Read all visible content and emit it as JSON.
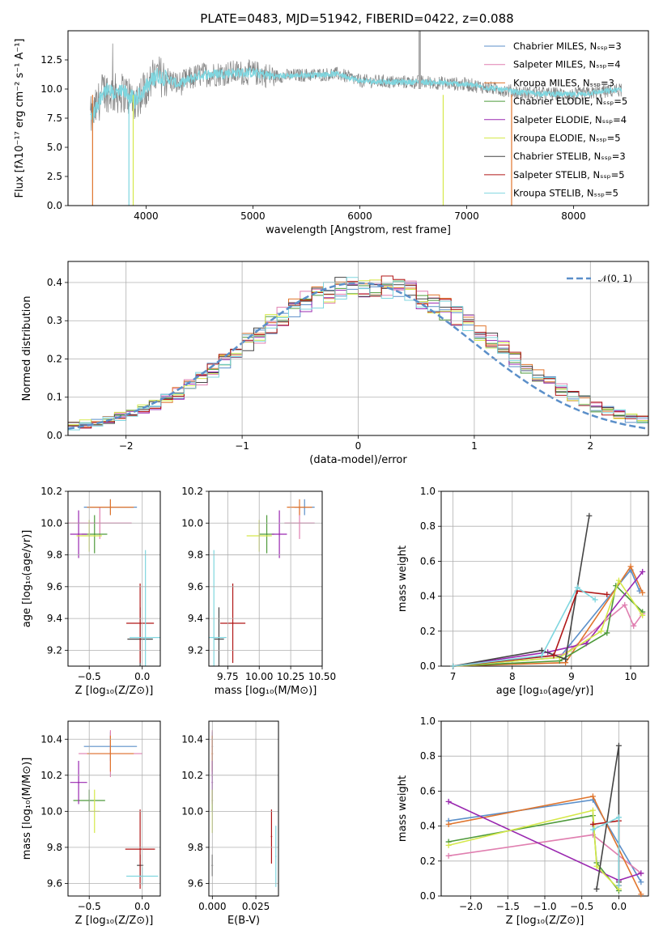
{
  "chart_data": [
    {
      "id": "spectrum",
      "type": "line",
      "title": "PLATE=0483, MJD=51942, FIBERID=0422, z=0.088",
      "xlabel": "wavelength [Angstrom, rest frame]",
      "ylabel": "Flux [fλ10⁻¹⁷ erg cm⁻² s⁻¹ A⁻¹]",
      "xlim": [
        3270,
        8700
      ],
      "ylim": [
        0,
        15
      ],
      "xticks": [
        4000,
        5000,
        6000,
        7000,
        8000
      ],
      "yticks": [
        0.0,
        2.5,
        5.0,
        7.5,
        10.0,
        12.5
      ],
      "xtick_labels": [
        "4000",
        "5000",
        "6000",
        "7000",
        "8000"
      ],
      "ytick_labels": [
        "0.0",
        "2.5",
        "5.0",
        "7.5",
        "10.0",
        "12.5"
      ],
      "legend_position": "top-right",
      "legend": [
        {
          "label": "Chabrier MILES, Nₛₛₚ=3",
          "color": "#5b8fc9"
        },
        {
          "label": "Salpeter MILES, Nₛₛₚ=4",
          "color": "#e07fb0"
        },
        {
          "label": "Kroupa MILES, Nₛₛₚ=3",
          "color": "#e0752d"
        },
        {
          "label": "Chabrier ELODIE, Nₛₛₚ=5",
          "color": "#4e9a3b"
        },
        {
          "label": "Salpeter ELODIE, Nₛₛₚ=4",
          "color": "#9a28b0"
        },
        {
          "label": "Kroupa ELODIE, Nₛₛₚ=5",
          "color": "#d5e84a"
        },
        {
          "label": "Chabrier STELIB, Nₛₛₚ=3",
          "color": "#444444"
        },
        {
          "label": "Salpeter STELIB, Nₛₛₚ=5",
          "color": "#b01717"
        },
        {
          "label": "Kroupa STELIB, Nₛₛₚ=5",
          "color": "#7fd6df"
        }
      ],
      "data_color": "#808080",
      "model_color": "#7fd6df",
      "continuum": {
        "x": [
          3500,
          3600,
          3700,
          3800,
          3900,
          4000,
          4100,
          4200,
          4300,
          4500,
          4800,
          5000,
          5200,
          5500,
          5800,
          6000,
          6300,
          6600,
          7000,
          7500,
          8000,
          8500
        ],
        "y": [
          7.6,
          9.9,
          9.6,
          9.7,
          9.0,
          10.2,
          11.2,
          10.9,
          10.4,
          11.2,
          11.4,
          11.4,
          11.1,
          11.2,
          11.3,
          10.7,
          10.6,
          10.6,
          10.4,
          9.7,
          9.5,
          10.0
        ]
      }
    },
    {
      "id": "residuals",
      "type": "histogram",
      "xlabel": "(data-model)/error",
      "ylabel": "Normed distribution",
      "xlim": [
        -2.5,
        2.5
      ],
      "ylim": [
        0,
        0.455
      ],
      "xticks": [
        -2,
        -1,
        0,
        1,
        2
      ],
      "yticks": [
        0.0,
        0.1,
        0.2,
        0.3,
        0.4
      ],
      "xtick_labels": [
        "−2",
        "−1",
        "0",
        "1",
        "2"
      ],
      "ytick_labels": [
        "0.0",
        "0.1",
        "0.2",
        "0.3",
        "0.4"
      ],
      "legend_label": "𝒩(0, 1)",
      "legend_position": "top-right",
      "gaussian_color": "#5b8fc9",
      "bin_width": 0.1,
      "bin_start": -2.5,
      "hist_values": [
        0.025,
        0.03,
        0.035,
        0.04,
        0.05,
        0.06,
        0.07,
        0.08,
        0.095,
        0.11,
        0.13,
        0.15,
        0.17,
        0.195,
        0.22,
        0.245,
        0.265,
        0.29,
        0.31,
        0.33,
        0.35,
        0.36,
        0.375,
        0.385,
        0.39,
        0.395,
        0.395,
        0.39,
        0.385,
        0.375,
        0.36,
        0.345,
        0.33,
        0.31,
        0.29,
        0.27,
        0.245,
        0.225,
        0.2,
        0.18,
        0.16,
        0.14,
        0.12,
        0.105,
        0.09,
        0.075,
        0.065,
        0.055,
        0.045,
        0.04
      ]
    },
    {
      "id": "age-vs-Z",
      "type": "errorbar",
      "xlabel": "Z [log₁₀(Z/Z⊙)]",
      "ylabel": "age  [log₁₀(age/yr)]",
      "xlim": [
        -0.7,
        0.17
      ],
      "ylim": [
        9.1,
        10.2
      ],
      "xticks": [
        -0.5,
        0.0
      ],
      "yticks": [
        9.2,
        9.4,
        9.6,
        9.8,
        10.0,
        10.2
      ],
      "xtick_labels": [
        "−0.5",
        "0.0"
      ],
      "ytick_labels": [
        "9.2",
        "9.4",
        "9.6",
        "9.8",
        "10.0",
        "10.2"
      ],
      "points": [
        {
          "x": -0.3,
          "y": 10.1,
          "xerr": 0.25,
          "yerr": 0.05,
          "color": "#5b8fc9"
        },
        {
          "x": -0.4,
          "y": 10.0,
          "xerr": 0.3,
          "yerr": 0.1,
          "color": "#e07fb0"
        },
        {
          "x": -0.3,
          "y": 10.1,
          "xerr": 0.22,
          "yerr": 0.05,
          "color": "#e0752d"
        },
        {
          "x": -0.45,
          "y": 9.93,
          "xerr": 0.12,
          "yerr": 0.12,
          "color": "#4e9a3b"
        },
        {
          "x": -0.6,
          "y": 9.93,
          "xerr": 0.08,
          "yerr": 0.15,
          "color": "#9a28b0"
        },
        {
          "x": -0.5,
          "y": 9.92,
          "xerr": 0.12,
          "yerr": 0.1,
          "color": "#d5e84a"
        },
        {
          "x": -0.02,
          "y": 9.27,
          "xerr": 0.12,
          "yerr": 0.2,
          "color": "#444444"
        },
        {
          "x": -0.02,
          "y": 9.37,
          "xerr": 0.13,
          "yerr": 0.25,
          "color": "#b01717"
        },
        {
          "x": 0.03,
          "y": 9.28,
          "xerr": 0.15,
          "yerr": 0.55,
          "color": "#7fd6df"
        }
      ]
    },
    {
      "id": "age-vs-mass",
      "type": "errorbar",
      "xlabel": "mass [log₁₀(M/M⊙)]",
      "xlim": [
        9.6,
        10.5
      ],
      "ylim": [
        9.1,
        10.2
      ],
      "xticks": [
        9.75,
        10.0,
        10.25,
        10.5
      ],
      "yticks": [
        9.2,
        9.4,
        9.6,
        9.8,
        10.0,
        10.2
      ],
      "xtick_labels": [
        "9.75",
        "10.00",
        "10.25",
        "10.50"
      ],
      "ytick_labels": [
        "9.2",
        "9.4",
        "9.6",
        "9.8",
        "10.0",
        "10.2"
      ],
      "points": [
        {
          "x": 10.36,
          "y": 10.1,
          "xerr": 0.08,
          "yerr": 0.05,
          "color": "#5b8fc9"
        },
        {
          "x": 10.32,
          "y": 10.0,
          "xerr": 0.12,
          "yerr": 0.1,
          "color": "#e07fb0"
        },
        {
          "x": 10.32,
          "y": 10.1,
          "xerr": 0.1,
          "yerr": 0.05,
          "color": "#e0752d"
        },
        {
          "x": 10.06,
          "y": 9.93,
          "xerr": 0.06,
          "yerr": 0.12,
          "color": "#4e9a3b"
        },
        {
          "x": 10.16,
          "y": 9.93,
          "xerr": 0.06,
          "yerr": 0.15,
          "color": "#9a28b0"
        },
        {
          "x": 10.0,
          "y": 9.92,
          "xerr": 0.1,
          "yerr": 0.1,
          "color": "#d5e84a"
        },
        {
          "x": 9.68,
          "y": 9.27,
          "xerr": 0.04,
          "yerr": 0.2,
          "color": "#444444"
        },
        {
          "x": 9.79,
          "y": 9.37,
          "xerr": 0.1,
          "yerr": 0.25,
          "color": "#b01717"
        },
        {
          "x": 9.64,
          "y": 9.28,
          "xerr": 0.1,
          "yerr": 0.55,
          "color": "#7fd6df"
        }
      ]
    },
    {
      "id": "massweight-vs-age",
      "type": "line",
      "xlabel": "age  [log₁₀(age/yr)]",
      "ylabel": "mass weight",
      "xlim": [
        6.8,
        10.3
      ],
      "ylim": [
        0,
        1.0
      ],
      "xticks": [
        7,
        8,
        9,
        10
      ],
      "yticks": [
        0.0,
        0.2,
        0.4,
        0.6,
        0.8,
        1.0
      ],
      "xtick_labels": [
        "7",
        "8",
        "9",
        "10"
      ],
      "ytick_labels": [
        "0.0",
        "0.2",
        "0.4",
        "0.6",
        "0.8",
        "1.0"
      ],
      "series": [
        {
          "color": "#5b8fc9",
          "x": [
            7.0,
            8.8,
            10.0,
            10.15
          ],
          "y": [
            0.0,
            0.05,
            0.55,
            0.43
          ]
        },
        {
          "color": "#e07fb0",
          "x": [
            7.0,
            8.9,
            9.9,
            10.05,
            10.2
          ],
          "y": [
            0.0,
            0.07,
            0.35,
            0.23,
            0.3
          ]
        },
        {
          "color": "#e0752d",
          "x": [
            7.0,
            8.9,
            10.0,
            10.2
          ],
          "y": [
            0.0,
            0.02,
            0.57,
            0.42
          ]
        },
        {
          "color": "#4e9a3b",
          "x": [
            7.0,
            8.8,
            9.6,
            9.75,
            10.2
          ],
          "y": [
            0.0,
            0.03,
            0.19,
            0.46,
            0.31
          ]
        },
        {
          "color": "#9a28b0",
          "x": [
            7.0,
            8.6,
            9.25,
            10.2
          ],
          "y": [
            0.0,
            0.08,
            0.13,
            0.54
          ]
        },
        {
          "color": "#d5e84a",
          "x": [
            7.0,
            8.8,
            9.5,
            9.8,
            10.2
          ],
          "y": [
            0.0,
            0.05,
            0.2,
            0.49,
            0.29
          ]
        },
        {
          "color": "#444444",
          "x": [
            7.0,
            8.5,
            8.9,
            9.3
          ],
          "y": [
            0.0,
            0.09,
            0.04,
            0.86
          ]
        },
        {
          "color": "#b01717",
          "x": [
            7.0,
            8.7,
            9.1,
            9.6
          ],
          "y": [
            0.0,
            0.06,
            0.43,
            0.41
          ]
        },
        {
          "color": "#7fd6df",
          "x": [
            7.0,
            8.5,
            9.1,
            9.4
          ],
          "y": [
            0.0,
            0.06,
            0.45,
            0.38
          ]
        }
      ]
    },
    {
      "id": "mass-vs-Z",
      "type": "errorbar",
      "xlabel": "Z [log₁₀(Z/Z⊙)]",
      "ylabel": "mass [log₁₀(M/M⊙)]",
      "xlim": [
        -0.7,
        0.17
      ],
      "ylim": [
        9.53,
        10.5
      ],
      "xticks": [
        -0.5,
        0.0
      ],
      "yticks": [
        9.6,
        9.8,
        10.0,
        10.2,
        10.4
      ],
      "xtick_labels": [
        "−0.5",
        "0.0"
      ],
      "ytick_labels": [
        "9.6",
        "9.8",
        "10.0",
        "10.2",
        "10.4"
      ],
      "points": [
        {
          "x": -0.3,
          "y": 10.36,
          "xerr": 0.25,
          "yerr": 0.08,
          "color": "#5b8fc9"
        },
        {
          "x": -0.3,
          "y": 10.32,
          "xerr": 0.3,
          "yerr": 0.13,
          "color": "#e07fb0"
        },
        {
          "x": -0.3,
          "y": 10.32,
          "xerr": 0.22,
          "yerr": 0.1,
          "color": "#e0752d"
        },
        {
          "x": -0.5,
          "y": 10.06,
          "xerr": 0.15,
          "yerr": 0.06,
          "color": "#4e9a3b"
        },
        {
          "x": -0.6,
          "y": 10.16,
          "xerr": 0.08,
          "yerr": 0.12,
          "color": "#9a28b0"
        },
        {
          "x": -0.45,
          "y": 10.0,
          "xerr": 0.05,
          "yerr": 0.12,
          "color": "#d5e84a"
        },
        {
          "x": -0.02,
          "y": 9.7,
          "xerr": 0.03,
          "yerr": 0.06,
          "color": "#444444"
        },
        {
          "x": -0.02,
          "y": 9.79,
          "xerr": 0.14,
          "yerr": 0.22,
          "color": "#b01717"
        },
        {
          "x": 0.0,
          "y": 9.64,
          "xerr": 0.15,
          "yerr": 0.05,
          "color": "#7fd6df"
        }
      ]
    },
    {
      "id": "mass-vs-ebv",
      "type": "errorbar",
      "xlabel": "E(B-V)",
      "xlim": [
        -0.002,
        0.038
      ],
      "ylim": [
        9.53,
        10.5
      ],
      "xticks": [
        0.0,
        0.025
      ],
      "yticks": [
        9.6,
        9.8,
        10.0,
        10.2,
        10.4
      ],
      "xtick_labels": [
        "0.000",
        "0.025"
      ],
      "ytick_labels": [
        "9.6",
        "9.8",
        "10.0",
        "10.2",
        "10.4"
      ],
      "points": [
        {
          "x": 0.0,
          "y": 10.36,
          "xerr": 0,
          "yerr": 0.08,
          "color": "#5b8fc9"
        },
        {
          "x": 0.0,
          "y": 10.32,
          "xerr": 0,
          "yerr": 0.13,
          "color": "#e07fb0"
        },
        {
          "x": 0.0,
          "y": 10.32,
          "xerr": 0,
          "yerr": 0.1,
          "color": "#e0752d"
        },
        {
          "x": 0.0,
          "y": 10.06,
          "xerr": 0,
          "yerr": 0.06,
          "color": "#4e9a3b"
        },
        {
          "x": 0.0,
          "y": 10.16,
          "xerr": 0,
          "yerr": 0.12,
          "color": "#9a28b0"
        },
        {
          "x": 0.0,
          "y": 10.0,
          "xerr": 0,
          "yerr": 0.12,
          "color": "#d5e84a"
        },
        {
          "x": 0.0,
          "y": 9.7,
          "xerr": 0,
          "yerr": 0.06,
          "color": "#444444"
        },
        {
          "x": 0.034,
          "y": 9.86,
          "xerr": 0,
          "yerr": 0.15,
          "color": "#b01717"
        },
        {
          "x": 0.0365,
          "y": 9.75,
          "xerr": 0,
          "yerr": 0.17,
          "color": "#7fd6df"
        }
      ]
    },
    {
      "id": "massweight-vs-Z",
      "type": "line",
      "xlabel": "Z [log₁₀(Z/Z⊙)]",
      "ylabel": "mass weight",
      "xlim": [
        -2.4,
        0.4
      ],
      "ylim": [
        0,
        1.0
      ],
      "xticks": [
        -2.0,
        -1.5,
        -1.0,
        -0.5,
        0.0
      ],
      "yticks": [
        0.0,
        0.2,
        0.4,
        0.6,
        0.8,
        1.0
      ],
      "xtick_labels": [
        "−2.0",
        "−1.5",
        "−1.0",
        "−0.5",
        "0.0"
      ],
      "ytick_labels": [
        "0.0",
        "0.2",
        "0.4",
        "0.6",
        "0.8",
        "1.0"
      ],
      "series": [
        {
          "color": "#5b8fc9",
          "x": [
            -2.3,
            -0.35,
            0.3
          ],
          "y": [
            0.43,
            0.55,
            0.08
          ]
        },
        {
          "color": "#e07fb0",
          "x": [
            -2.3,
            -0.35,
            0.3
          ],
          "y": [
            0.23,
            0.35,
            0.13
          ]
        },
        {
          "color": "#e0752d",
          "x": [
            -2.3,
            -0.35,
            0.3
          ],
          "y": [
            0.41,
            0.57,
            0.01
          ]
        },
        {
          "color": "#4e9a3b",
          "x": [
            -2.3,
            -0.35,
            -0.3,
            0.0
          ],
          "y": [
            0.31,
            0.46,
            0.19,
            0.03
          ]
        },
        {
          "color": "#9a28b0",
          "x": [
            -2.3,
            0.0,
            0.3
          ],
          "y": [
            0.54,
            0.09,
            0.13
          ]
        },
        {
          "color": "#d5e84a",
          "x": [
            -2.3,
            -0.35,
            -0.3,
            0.0
          ],
          "y": [
            0.29,
            0.49,
            0.17,
            0.04
          ]
        },
        {
          "color": "#444444",
          "x": [
            -0.3,
            0.0,
            0.0
          ],
          "y": [
            0.04,
            0.86,
            0.08
          ]
        },
        {
          "color": "#b01717",
          "x": [
            -0.35,
            0.0,
            0.0
          ],
          "y": [
            0.41,
            0.43,
            0.06
          ]
        },
        {
          "color": "#7fd6df",
          "x": [
            -0.35,
            0.0,
            0.0
          ],
          "y": [
            0.38,
            0.45,
            0.06
          ]
        }
      ]
    }
  ]
}
